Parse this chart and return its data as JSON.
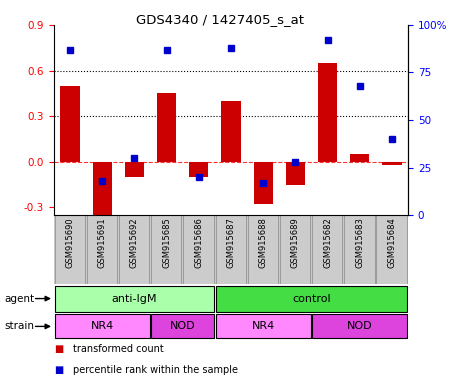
{
  "title": "GDS4340 / 1427405_s_at",
  "samples": [
    "GSM915690",
    "GSM915691",
    "GSM915692",
    "GSM915685",
    "GSM915686",
    "GSM915687",
    "GSM915688",
    "GSM915689",
    "GSM915682",
    "GSM915683",
    "GSM915684"
  ],
  "transformed_counts": [
    0.5,
    -0.35,
    -0.1,
    0.45,
    -0.1,
    0.4,
    -0.28,
    -0.15,
    0.65,
    0.05,
    -0.02
  ],
  "percentile_ranks": [
    87,
    18,
    30,
    87,
    20,
    88,
    17,
    28,
    92,
    68,
    40
  ],
  "ylim_left": [
    -0.35,
    0.9
  ],
  "ylim_right": [
    0,
    100
  ],
  "yticks_left": [
    -0.3,
    0.0,
    0.3,
    0.6,
    0.9
  ],
  "yticks_right": [
    0,
    25,
    50,
    75,
    100
  ],
  "hlines_dotted": [
    0.3,
    0.6
  ],
  "hline_dashed": 0.0,
  "bar_color": "#CC0000",
  "dot_color": "#0000CC",
  "agent_groups": [
    {
      "label": "anti-IgM",
      "start": 0,
      "end": 5,
      "color": "#AAFFAA"
    },
    {
      "label": "control",
      "start": 5,
      "end": 11,
      "color": "#44DD44"
    }
  ],
  "strain_groups": [
    {
      "label": "NR4",
      "start": 0,
      "end": 3,
      "color": "#FF88FF"
    },
    {
      "label": "NOD",
      "start": 3,
      "end": 5,
      "color": "#DD44DD"
    },
    {
      "label": "NR4",
      "start": 5,
      "end": 8,
      "color": "#FF88FF"
    },
    {
      "label": "NOD",
      "start": 8,
      "end": 11,
      "color": "#DD44DD"
    }
  ],
  "legend_items": [
    {
      "label": "transformed count",
      "color": "#CC0000"
    },
    {
      "label": "percentile rank within the sample",
      "color": "#0000CC"
    }
  ],
  "label_bg": "#C8C8C8",
  "sample_box_color": "#CCCCCC"
}
